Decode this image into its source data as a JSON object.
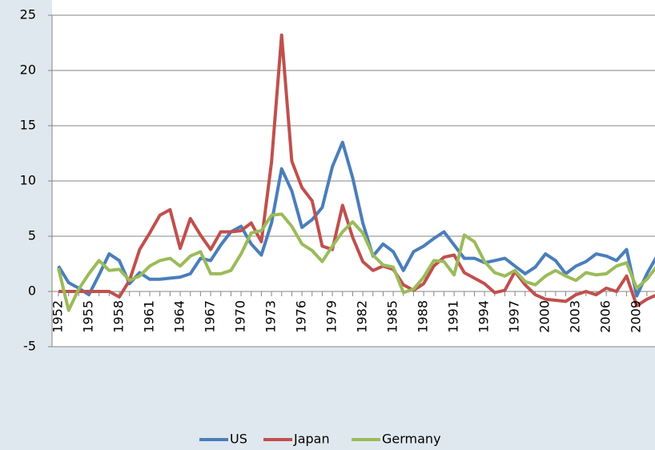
{
  "chart_data": {
    "type": "line",
    "x": [
      1952,
      1953,
      1954,
      1955,
      1956,
      1957,
      1958,
      1959,
      1960,
      1961,
      1962,
      1963,
      1964,
      1965,
      1966,
      1967,
      1968,
      1969,
      1970,
      1971,
      1972,
      1973,
      1974,
      1975,
      1976,
      1977,
      1978,
      1979,
      1980,
      1981,
      1982,
      1983,
      1984,
      1985,
      1986,
      1987,
      1988,
      1989,
      1990,
      1991,
      1992,
      1993,
      1994,
      1995,
      1996,
      1997,
      1998,
      1999,
      2000,
      2001,
      2002,
      2003,
      2004,
      2005,
      2006,
      2007,
      2008,
      2009,
      2010,
      2011
    ],
    "xlim": [
      1951.4,
      2011
    ],
    "xticks": [
      1952,
      1955,
      1958,
      1961,
      1964,
      1967,
      1970,
      1973,
      1976,
      1979,
      1982,
      1985,
      1988,
      1991,
      1994,
      1997,
      2000,
      2003,
      2006,
      2009
    ],
    "ylim": [
      -5,
      25
    ],
    "yticks": [
      -5,
      0,
      5,
      10,
      15,
      20,
      25
    ],
    "grid": true,
    "legend": "bottom",
    "series": [
      {
        "name": "US",
        "color": "#4a7ebb",
        "values": [
          2.3,
          0.8,
          0.3,
          -0.3,
          1.5,
          3.4,
          2.8,
          0.7,
          1.7,
          1.1,
          1.1,
          1.2,
          1.3,
          1.6,
          3.0,
          2.8,
          4.2,
          5.4,
          5.9,
          4.3,
          3.3,
          6.2,
          11.1,
          9.1,
          5.8,
          6.5,
          7.6,
          11.3,
          13.5,
          10.3,
          6.2,
          3.2,
          4.3,
          3.6,
          1.9,
          3.6,
          4.1,
          4.8,
          5.4,
          4.2,
          3.0,
          3.0,
          2.6,
          2.8,
          3.0,
          2.3,
          1.6,
          2.2,
          3.4,
          2.8,
          1.6,
          2.3,
          2.7,
          3.4,
          3.2,
          2.8,
          3.8,
          -0.4,
          1.6,
          3.2
        ]
      },
      {
        "name": "Japan",
        "color": "#c0504d",
        "values": [
          0,
          0,
          0,
          0,
          0,
          0,
          -0.5,
          1.0,
          3.8,
          5.3,
          6.9,
          7.4,
          3.9,
          6.6,
          5.1,
          3.8,
          5.4,
          5.4,
          5.5,
          6.2,
          4.5,
          11.7,
          23.2,
          11.8,
          9.4,
          8.2,
          4.1,
          3.8,
          7.8,
          4.9,
          2.7,
          1.9,
          2.3,
          2.0,
          0.6,
          0.1,
          0.7,
          2.3,
          3.1,
          3.3,
          1.7,
          1.2,
          0.7,
          -0.1,
          0.1,
          1.8,
          0.6,
          -0.3,
          -0.7,
          -0.8,
          -0.9,
          -0.3,
          0,
          -0.3,
          0.3,
          0,
          1.4,
          -1.3,
          -0.7,
          -0.3
        ]
      },
      {
        "name": "Germany",
        "color": "#9bbb59",
        "values": [
          2.1,
          -1.7,
          0.2,
          1.6,
          2.8,
          1.9,
          2.0,
          1.0,
          1.4,
          2.3,
          2.8,
          3.0,
          2.3,
          3.2,
          3.6,
          1.6,
          1.6,
          1.9,
          3.4,
          5.3,
          5.5,
          6.9,
          7.0,
          5.9,
          4.3,
          3.7,
          2.7,
          4.1,
          5.4,
          6.3,
          5.3,
          3.3,
          2.4,
          2.2,
          -0.1,
          0.2,
          1.3,
          2.8,
          2.7,
          1.5,
          5.1,
          4.5,
          2.7,
          1.7,
          1.4,
          1.9,
          0.9,
          0.6,
          1.4,
          1.9,
          1.4,
          1.0,
          1.7,
          1.5,
          1.6,
          2.3,
          2.6,
          0.3,
          1.1,
          2.3
        ]
      }
    ]
  }
}
